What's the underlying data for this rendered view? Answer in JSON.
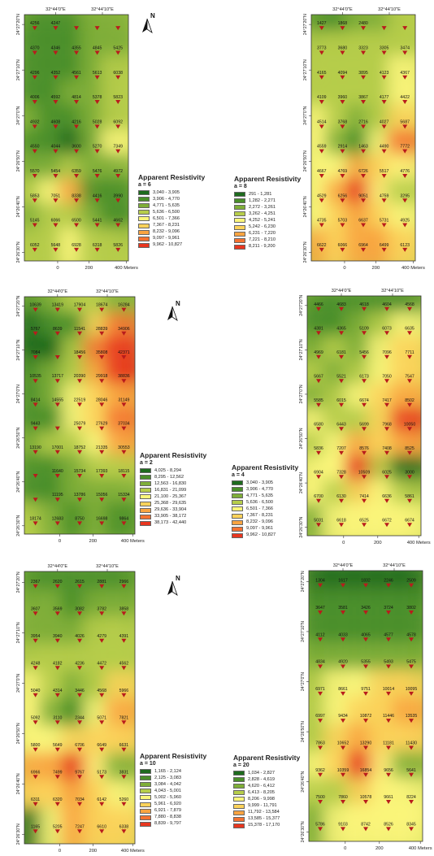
{
  "maps": [
    {
      "id": "a6",
      "top_coords": [
        "32°44'0\"E",
        "32°44'10\"E"
      ],
      "left_coords": [
        "24°27'20\"N",
        "24°27'10\"N",
        "24°27'0\"N",
        "24°26'50\"N",
        "24°26'40\"N",
        "24°26'30\"N"
      ],
      "scale_labels": [
        "0",
        "200",
        "400 Meters"
      ],
      "north_label": "N",
      "legend": {
        "title": "Apparent Resistivity",
        "param": "a = 6",
        "classes": [
          "3,040 - 3,905",
          "3,906 - 4,770",
          "4,771 - 5,635",
          "5,636 - 6,500",
          "6,501 - 7,366",
          "7,367 - 8,231",
          "8,232 - 9,096",
          "9,097 - 9,961",
          "9,962 - 10,827"
        ]
      },
      "rows": [
        [
          "4256",
          "4247",
          "",
          "",
          ""
        ],
        [
          "4370",
          "4346",
          "4355",
          "4845",
          "5425"
        ],
        [
          "4296",
          "4352",
          "4561",
          "5613",
          "6038"
        ],
        [
          "4006",
          "4592",
          "4814",
          "5378",
          "5823"
        ],
        [
          "4932",
          "4608",
          "4216",
          "5028",
          "6092"
        ],
        [
          "4550",
          "4044",
          "3600",
          "5270",
          "7349"
        ],
        [
          "5570",
          "5454",
          "6359",
          "5476",
          "4972"
        ],
        [
          "5853",
          "7051",
          "8338",
          "4416",
          "3990"
        ],
        [
          "5145",
          "6066",
          "6500",
          "5441",
          "4662"
        ],
        [
          "6052",
          "5648",
          "6928",
          "6318",
          "5826"
        ]
      ]
    },
    {
      "id": "a8",
      "top_coords": [
        "32°44'0\"E",
        "32°44'10\"E"
      ],
      "left_coords": [
        "24°27'20\"N",
        "24°27'10\"N",
        "24°27'0\"N",
        "24°26'50\"N",
        "24°26'40\"N",
        "24°26'30\"N"
      ],
      "scale_labels": [
        "0",
        "200",
        "400 Meters"
      ],
      "north_label": "",
      "legend": {
        "title": "Apparent Resistivity",
        "param": "a = 8",
        "classes": [
          "291 - 1,281",
          "1,282 - 2,271",
          "2,272 - 3,261",
          "3,262 - 4,251",
          "4,252 - 5,241",
          "5,242 - 6,230",
          "6,231 - 7,220",
          "7,221 - 8,210",
          "8,211 - 9,200"
        ]
      },
      "rows": [
        [
          "1427",
          "1868",
          "2480",
          "",
          ""
        ],
        [
          "3773",
          "3680",
          "3323",
          "3305",
          "3474"
        ],
        [
          "4165",
          "4094",
          "3895",
          "4123",
          "4367"
        ],
        [
          "4109",
          "3960",
          "3867",
          "4177",
          "4422"
        ],
        [
          "4514",
          "3768",
          "2716",
          "4027",
          "5687"
        ],
        [
          "4559",
          "2914",
          "1463",
          "4490",
          "7772"
        ],
        [
          "4667",
          "4769",
          "6726",
          "5517",
          "4776"
        ],
        [
          "4529",
          "6256",
          "9051",
          "4759",
          "3295"
        ],
        [
          "4735",
          "5703",
          "6637",
          "5731",
          "4925"
        ],
        [
          "6622",
          "6066",
          "6964",
          "6499",
          "6123"
        ]
      ]
    },
    {
      "id": "a2",
      "top_coords": [
        "32°44'0\"E",
        "32°44'10\"E"
      ],
      "left_coords": [
        "24°27'20\"N",
        "24°27'10\"N",
        "24°27'0\"N",
        "24°26'50\"N",
        "24°26'40\"N",
        "24°26'30\"N"
      ],
      "scale_labels": [
        "0",
        "200",
        "400 Meters"
      ],
      "north_label": "N",
      "legend": {
        "title": "Apparent Resistivity",
        "param": "a = 2",
        "classes": [
          "4,025 - 8,294",
          "8,295 - 12,562",
          "12,563 - 16,830",
          "16,831 - 21,099",
          "21,100 - 25,367",
          "25,368 - 29,635",
          "29,636 - 33,904",
          "33,905 - 38,172",
          "38,173 - 42,440"
        ]
      },
      "rows": [
        [
          "10639",
          "13419",
          "17904",
          "18674",
          "16284"
        ],
        [
          "5767",
          "8639",
          "11541",
          "28839",
          "34906"
        ],
        [
          "7084",
          "",
          "18456",
          "35808",
          "42371"
        ],
        [
          "10535",
          "13717",
          "20390",
          "29918",
          "38836"
        ],
        [
          "8414",
          "14555",
          "22519",
          "28046",
          "31149"
        ],
        [
          "9443",
          "",
          "25079",
          "27629",
          "37034"
        ],
        [
          "13190",
          "17001",
          "18752",
          "21335",
          "30553"
        ],
        [
          "",
          "11640",
          "15734",
          "17393",
          "18115"
        ],
        [
          "",
          "11195",
          "13786",
          "15056",
          "15334"
        ],
        [
          "18174",
          "12683",
          "8750",
          "16698",
          "9864"
        ]
      ]
    },
    {
      "id": "a4",
      "top_coords": [
        "32°44'0\"E",
        "32°44'10\"E"
      ],
      "left_coords": [
        "24°27'20\"N",
        "24°27'10\"N",
        "24°27'0\"N",
        "24°26'50\"N",
        "24°26'40\"N",
        "24°26'30\"N"
      ],
      "scale_labels": [
        "0",
        "200",
        "400 Meters"
      ],
      "north_label": "",
      "legend": {
        "title": "Apparent Resistivity",
        "param": "a = 4",
        "classes": [
          "3,040 - 3,905",
          "3,906 - 4,770",
          "4,771 - 5,635",
          "5,636 - 6,500",
          "6,501 - 7,366",
          "7,367 - 8,231",
          "8,232 - 9,096",
          "9,097 - 9,961",
          "9,962 - 10,827"
        ]
      },
      "rows": [
        [
          "4466",
          "4683",
          "4618",
          "4604",
          "4568"
        ],
        [
          "4381",
          "4365",
          "5109",
          "6073",
          "6635"
        ],
        [
          "4969",
          "6181",
          "5456",
          "7096",
          "7711"
        ],
        [
          "5667",
          "5521",
          "6173",
          "7050",
          "7547"
        ],
        [
          "5585",
          "6015",
          "6674",
          "7417",
          "8502"
        ],
        [
          "6580",
          "6443",
          "5699",
          "7968",
          "10050"
        ],
        [
          "5836",
          "7207",
          "8576",
          "7408",
          "8525"
        ],
        [
          "6904",
          "7328",
          "10509",
          "6025",
          "3000"
        ],
        [
          "6700",
          "6130",
          "7414",
          "6636",
          "5861"
        ],
        [
          "5031",
          "6618",
          "6525",
          "6672",
          "6674"
        ]
      ]
    },
    {
      "id": "a10",
      "top_coords": [
        "32°44'0\"E",
        "32°44'10\"E"
      ],
      "left_coords": [
        "24°27'20\"N",
        "24°27'10\"N",
        "24°27'0\"N",
        "24°26'50\"N",
        "24°26'40\"N",
        "24°26'30\"N"
      ],
      "scale_labels": [
        "0",
        "200",
        "400 Meters"
      ],
      "north_label": "N",
      "legend": {
        "title": "Apparent Resistivity",
        "param": "a = 10",
        "classes": [
          "1,165 - 2,124",
          "2,125 - 3,083",
          "3,084 - 4,042",
          "4,043 - 5,001",
          "5,002 - 5,960",
          "5,961 - 6,920",
          "6,921 - 7,879",
          "7,880 - 8,838",
          "8,839 - 9,797"
        ]
      },
      "rows": [
        [
          "2367",
          "2620",
          "2615",
          "2881",
          "2966"
        ],
        [
          "3607",
          "3569",
          "3082",
          "3782",
          "3858"
        ],
        [
          "3954",
          "3940",
          "4026",
          "4279",
          "4391"
        ],
        [
          "4248",
          "4182",
          "4236",
          "4472",
          "4562"
        ],
        [
          "5040",
          "4314",
          "3446",
          "4568",
          "5966"
        ],
        [
          "5092",
          "3110",
          "2344",
          "5071",
          "7821"
        ],
        [
          "5800",
          "5649",
          "6706",
          "6649",
          "6631"
        ],
        [
          "6966",
          "7499",
          "9767",
          "5173",
          "3831"
        ],
        [
          "6311",
          "6320",
          "7034",
          "6142",
          "5260"
        ],
        [
          "1165",
          "5205",
          "7247",
          "6610",
          "6338"
        ]
      ]
    },
    {
      "id": "a20",
      "top_coords": [
        "32°44'0\"E",
        "32°44'10\"E"
      ],
      "left_coords": [
        "24°27'20\"N",
        "24°27'10\"N",
        "24°27'0\"N",
        "24°26'50\"N",
        "24°26'40\"N",
        "24°26'30\"N"
      ],
      "scale_labels": [
        "0",
        "200",
        "400 Meters"
      ],
      "north_label": "",
      "legend": {
        "title": "Apparent Resistivity",
        "param": "a = 20",
        "classes": [
          "1,034 - 2,827",
          "2,828 - 4,619",
          "4,620 - 6,412",
          "6,413 - 8,205",
          "8,206 - 9,998",
          "9,999 - 11,791",
          "11,792 - 13,584",
          "13,585 - 15,377",
          "15,378 - 17,170"
        ]
      },
      "rows": [
        [
          "1304",
          "1617",
          "1832",
          "2246",
          "2509"
        ],
        [
          "3647",
          "3581",
          "3426",
          "3724",
          "3802"
        ],
        [
          "4112",
          "4033",
          "4065",
          "4577",
          "4578"
        ],
        [
          "4834",
          "4920",
          "5355",
          "5493",
          "5475"
        ],
        [
          "6971",
          "8661",
          "9751",
          "10014",
          "10095"
        ],
        [
          "6997",
          "9434",
          "10872",
          "11446",
          "13535"
        ],
        [
          "7863",
          "10652",
          "13290",
          "11181",
          "11430"
        ],
        [
          "9362",
          "10359",
          "16854",
          "9656",
          "5641"
        ],
        [
          "7500",
          "7860",
          "10578",
          "9661",
          "8224"
        ],
        [
          "5786",
          "9103",
          "8742",
          "8526",
          "8345"
        ]
      ]
    }
  ],
  "colors": {
    "ramp": [
      "#1e6b1e",
      "#4a8f2a",
      "#7fae38",
      "#b6cd4a",
      "#fbf67b",
      "#fcd25a",
      "#f9a441",
      "#f47231",
      "#e8361f"
    ],
    "marker": "#b81c1c",
    "frame": "#333333",
    "text": "#111111"
  },
  "icons": {
    "north_arrow": "north-arrow-icon",
    "station_marker": "triangle-marker-icon"
  }
}
